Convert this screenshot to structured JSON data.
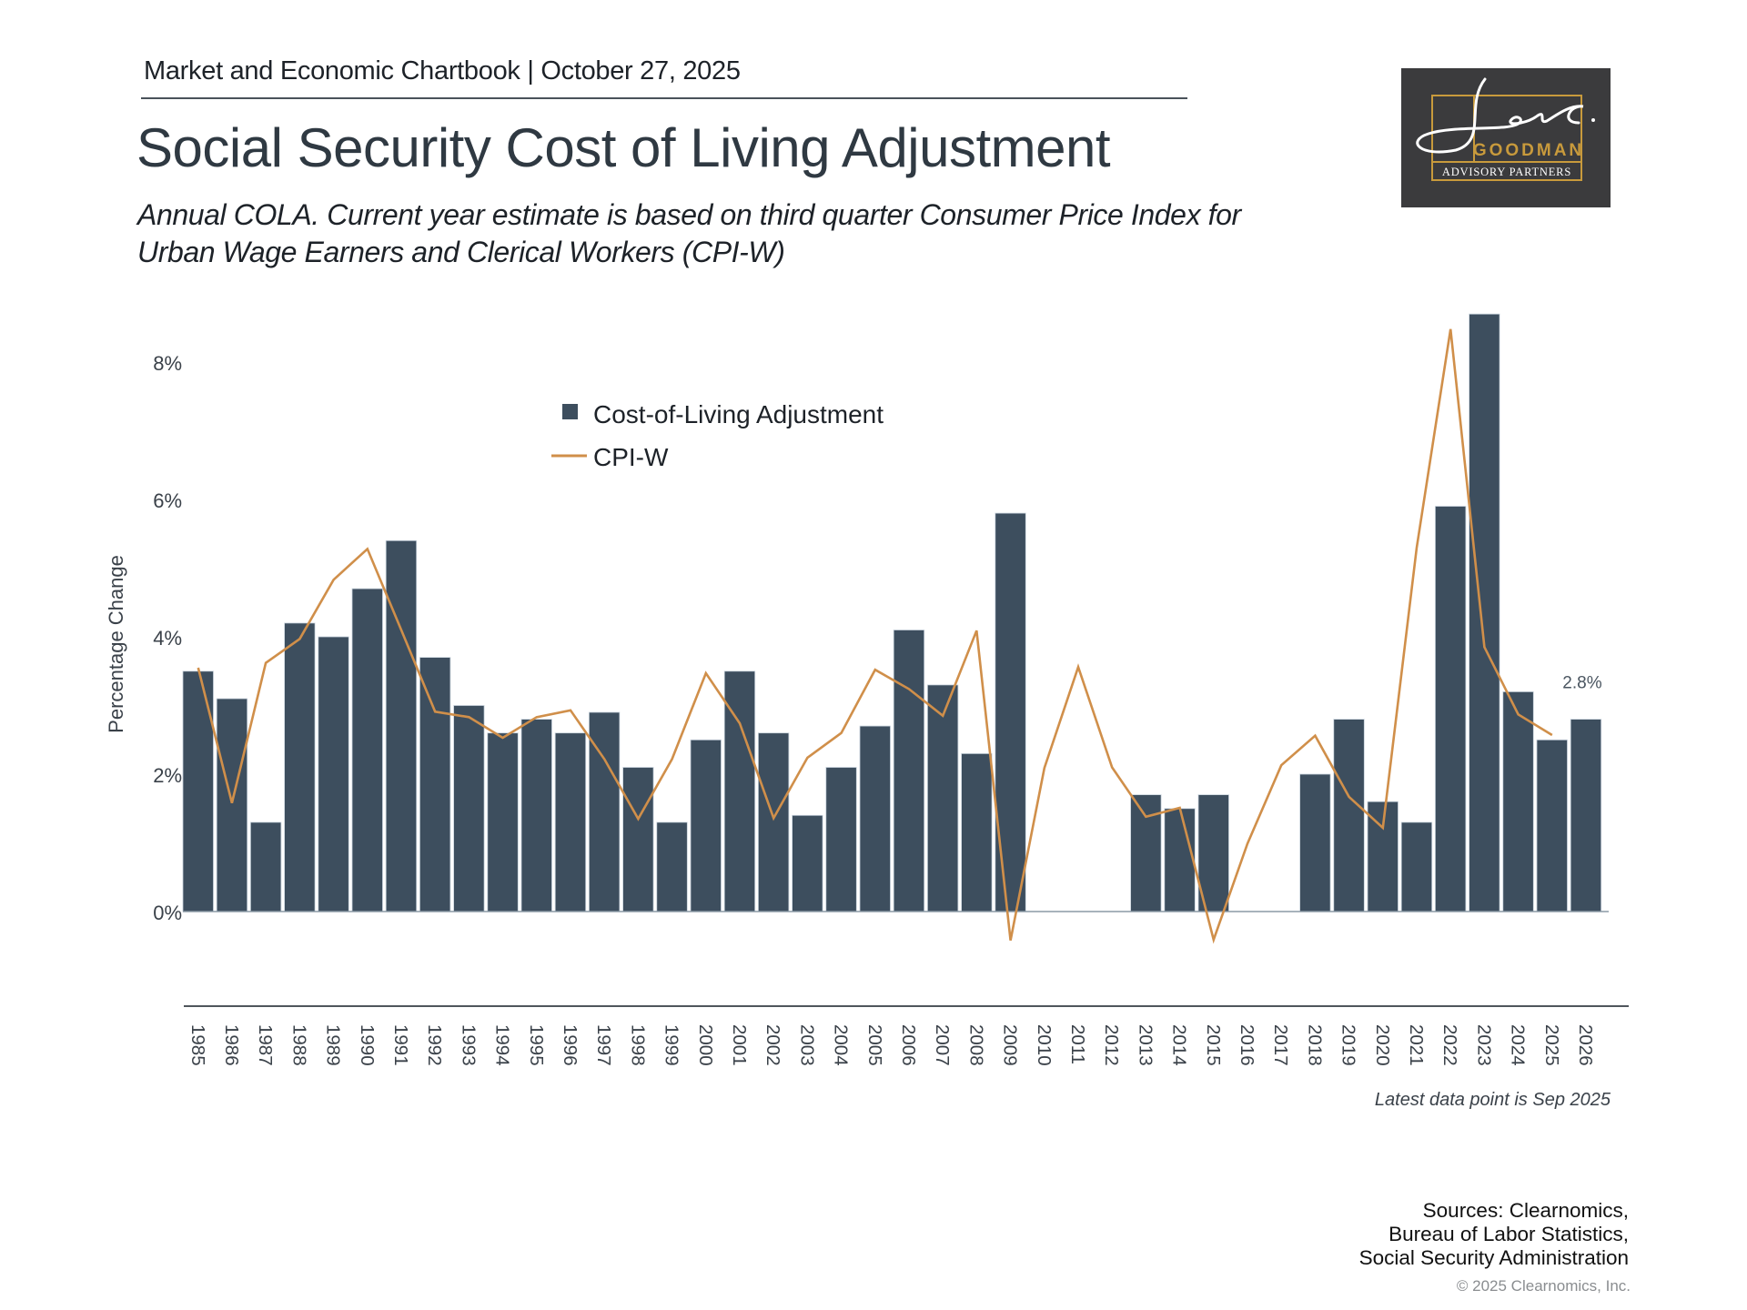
{
  "header": {
    "kicker": "Market and Economic Chartbook | October 27, 2025",
    "title": "Social Security Cost of Living Adjustment",
    "subtitle": "Annual COLA. Current year estimate is based on third quarter Consumer Price Index for Urban Wage Earners and Clerical Workers (CPI-W)"
  },
  "logo": {
    "script_text": "Jon C.",
    "name": "GOODMAN",
    "tagline": "ADVISORY PARTNERS",
    "colors": {
      "background": "#3b3b3d",
      "gold": "#c89a3c",
      "white": "#ffffff"
    }
  },
  "chart_data": {
    "type": "bar",
    "title": "Social Security Cost of Living Adjustment",
    "xlabel": "",
    "ylabel": "Percentage Change",
    "ylim": [
      -1.2,
      8.8
    ],
    "yticks": [
      0,
      2,
      4,
      6,
      8
    ],
    "ytick_labels": [
      "0%",
      "2%",
      "4%",
      "6%",
      "8%"
    ],
    "grid": false,
    "legend_position": "top-center",
    "categories": [
      "1985",
      "1986",
      "1987",
      "1988",
      "1989",
      "1990",
      "1991",
      "1992",
      "1993",
      "1994",
      "1995",
      "1996",
      "1997",
      "1998",
      "1999",
      "2000",
      "2001",
      "2002",
      "2003",
      "2004",
      "2005",
      "2006",
      "2007",
      "2008",
      "2009",
      "2010",
      "2011",
      "2012",
      "2013",
      "2014",
      "2015",
      "2016",
      "2017",
      "2018",
      "2019",
      "2020",
      "2021",
      "2022",
      "2023",
      "2024",
      "2025",
      "2026"
    ],
    "series": [
      {
        "name": "Cost-of-Living Adjustment",
        "type": "bar",
        "color": "#3d4e5e",
        "values": [
          3.5,
          3.1,
          1.3,
          4.2,
          4.0,
          4.7,
          5.4,
          3.7,
          3.0,
          2.6,
          2.8,
          2.6,
          2.9,
          2.1,
          1.3,
          2.5,
          3.5,
          2.6,
          1.4,
          2.1,
          2.7,
          4.1,
          3.3,
          2.3,
          5.8,
          0.0,
          0.0,
          0.0,
          1.7,
          1.5,
          1.7,
          0.0,
          0.0,
          2.0,
          2.8,
          1.6,
          1.3,
          5.9,
          8.7,
          3.2,
          2.5,
          2.8
        ]
      },
      {
        "name": "CPI-W",
        "type": "line",
        "color": "#d08f4a",
        "values": [
          3.55,
          1.58,
          3.62,
          3.97,
          4.83,
          5.28,
          4.1,
          2.91,
          2.83,
          2.53,
          2.83,
          2.93,
          2.22,
          1.35,
          2.22,
          3.47,
          2.74,
          1.36,
          2.24,
          2.6,
          3.52,
          3.24,
          2.85,
          4.09,
          -0.42,
          2.09,
          3.56,
          2.1,
          1.38,
          1.51,
          -0.41,
          0.99,
          2.13,
          2.56,
          1.67,
          1.22,
          5.3,
          8.48,
          3.85,
          2.87,
          2.57,
          null
        ]
      }
    ],
    "annotations": [
      {
        "category": "2026",
        "text": "2.8%"
      }
    ],
    "note": "Latest data point is Sep 2025"
  },
  "footer": {
    "sources_lines": [
      "Sources: Clearnomics,",
      "Bureau of Labor Statistics,",
      "Social Security Administration"
    ],
    "copyright": "© 2025 Clearnomics, Inc."
  }
}
